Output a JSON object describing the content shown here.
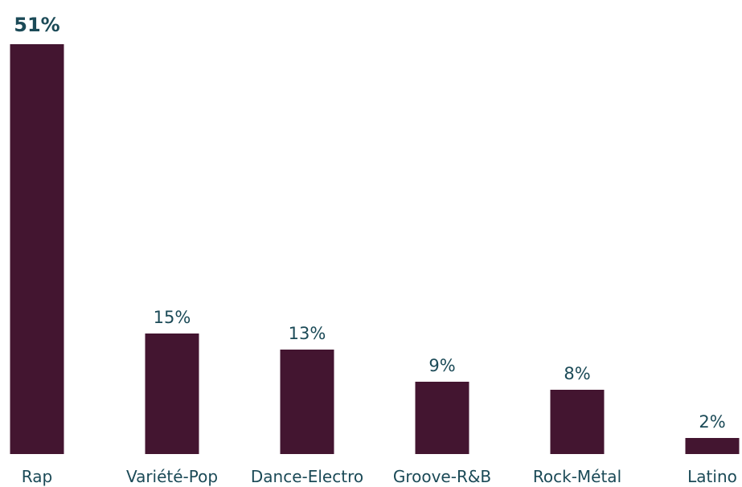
{
  "chart_data": {
    "type": "bar",
    "categories": [
      "Rap",
      "Variété-Pop",
      "Dance-Electro",
      "Groove-R&B",
      "Rock-Métal",
      "Latino"
    ],
    "values": [
      51,
      15,
      13,
      9,
      8,
      2
    ],
    "value_labels": [
      "51%",
      "15%",
      "13%",
      "9%",
      "8%",
      "2%"
    ],
    "highlighted_index": 0,
    "unit": "%",
    "ylim": [
      0,
      51
    ],
    "grid": false,
    "legend": "none",
    "colors": {
      "bar": "#431530",
      "text": "#1b4a57"
    }
  }
}
